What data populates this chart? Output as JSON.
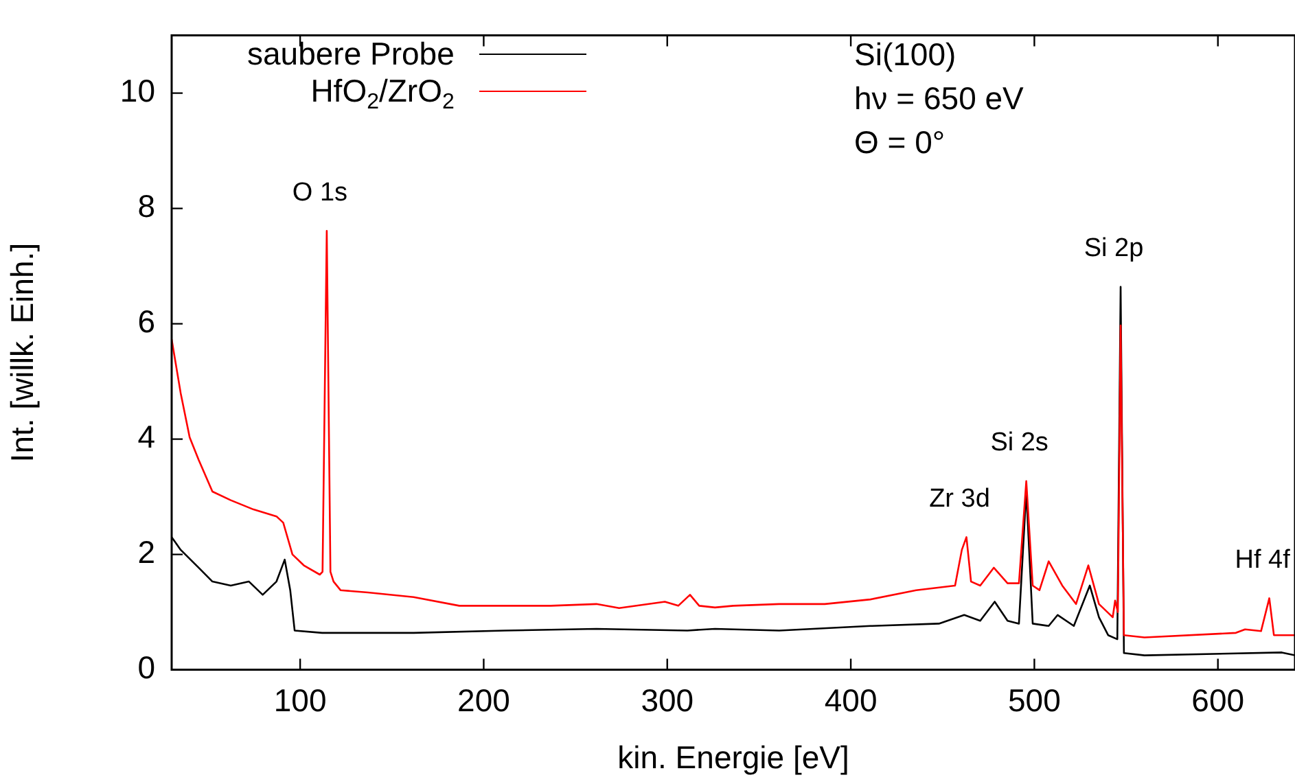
{
  "chart_data": {
    "type": "line",
    "xlabel": "kin. Energie [eV]",
    "ylabel": "Int. [willk. Einh.]",
    "xlim": [
      30,
      642
    ],
    "ylim": [
      0,
      11
    ],
    "xticks": [
      100,
      200,
      300,
      400,
      500,
      600
    ],
    "yticks": [
      0,
      2,
      4,
      6,
      8,
      10
    ],
    "grid": false,
    "legend": "top left",
    "marker": "none",
    "line_style": "solid",
    "series": [
      {
        "name": "saubere Probe",
        "color": "#000000",
        "x": [
          30,
          34.9,
          44.7,
          52.2,
          62.2,
          72.1,
          79.6,
          87.1,
          91.6,
          94.6,
          97,
          112,
          161.8,
          211.6,
          261.4,
          311,
          326,
          361,
          410.7,
          448,
          461.8,
          470.5,
          478.4,
          485.4,
          491.6,
          495.6,
          499.1,
          507.8,
          512.7,
          521.5,
          530.2,
          535.2,
          540.2,
          545.2,
          547,
          548.8,
          560,
          634.8,
          642
        ],
        "values": [
          2.3,
          2.08,
          1.77,
          1.53,
          1.46,
          1.53,
          1.3,
          1.53,
          1.91,
          1.38,
          0.68,
          0.64,
          0.64,
          0.68,
          0.71,
          0.68,
          0.71,
          0.68,
          0.76,
          0.8,
          0.95,
          0.85,
          1.18,
          0.85,
          0.8,
          3.1,
          0.8,
          0.76,
          0.95,
          0.76,
          1.46,
          0.91,
          0.6,
          0.53,
          6.64,
          0.29,
          0.25,
          0.3,
          0.25
        ]
      },
      {
        "name": "HfO$_{2}$/ZrO$_{2}$",
        "color": "#ff0000",
        "x": [
          30,
          34.9,
          39.8,
          44.7,
          52.2,
          62.2,
          74.6,
          87.1,
          90.8,
          95.8,
          102,
          110.7,
          112.2,
          114.5,
          116.5,
          118.2,
          122,
          136.9,
          161.8,
          186.7,
          236.5,
          261.4,
          273.8,
          298.7,
          306,
          312.4,
          317.4,
          326,
          336,
          360.9,
          385.8,
          410.7,
          435.6,
          456.8,
          460.5,
          463,
          465.5,
          470.5,
          477.9,
          485.4,
          491.6,
          495.6,
          499.1,
          502.8,
          507.8,
          515.2,
          522.7,
          529.4,
          535.2,
          542.7,
          544,
          545.5,
          547,
          548.8,
          560,
          609.8,
          614.8,
          623.5,
          628,
          630.5,
          642
        ],
        "values": [
          5.73,
          4.8,
          4.03,
          3.64,
          3.09,
          2.94,
          2.78,
          2.66,
          2.55,
          2.0,
          1.81,
          1.65,
          1.7,
          7.61,
          1.7,
          1.53,
          1.38,
          1.34,
          1.26,
          1.11,
          1.11,
          1.14,
          1.07,
          1.18,
          1.11,
          1.3,
          1.11,
          1.08,
          1.11,
          1.14,
          1.14,
          1.22,
          1.38,
          1.46,
          2.08,
          2.3,
          1.53,
          1.46,
          1.77,
          1.5,
          1.5,
          3.27,
          1.46,
          1.38,
          1.88,
          1.46,
          1.14,
          1.81,
          1.14,
          0.91,
          1.2,
          1.0,
          5.97,
          0.6,
          0.56,
          0.64,
          0.7,
          0.67,
          1.24,
          0.6,
          0.6
        ]
      }
    ],
    "annotations": [
      {
        "text": "O 1s",
        "x": 114.5,
        "y": 7.61
      },
      {
        "text": "Si 2p",
        "x": 547,
        "y": 6.64
      },
      {
        "text": "Si 2s",
        "x": 495.6,
        "y": 3.27
      },
      {
        "text": "Zr 3d",
        "x": 463,
        "y": 2.3
      },
      {
        "text": "Hf 4f",
        "x": 628,
        "y": 1.24
      },
      "Si(100)",
      "hν = 650 eV",
      "Θ = 0°"
    ]
  }
}
